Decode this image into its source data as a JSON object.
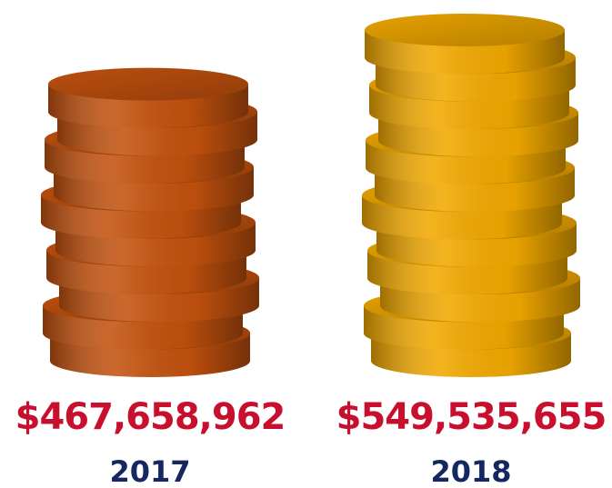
{
  "chart_data": {
    "type": "bar",
    "categories": [
      "2017",
      "2018"
    ],
    "values": [
      467658962,
      549535655
    ],
    "value_labels": [
      "$467,658,962",
      "$549,535,655"
    ],
    "colors": [
      "#c4520e",
      "#f2a900"
    ]
  }
}
